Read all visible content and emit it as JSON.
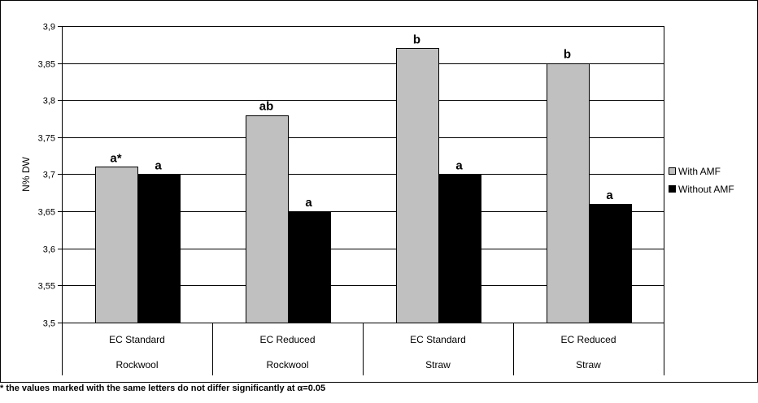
{
  "chart_data": {
    "type": "bar",
    "title": "",
    "xlabel": "",
    "ylabel": "N% DW",
    "ylim": [
      3.5,
      3.9
    ],
    "ytick_step": 0.05,
    "y_tick_labels": [
      "3,5",
      "3,55",
      "3,6",
      "3,65",
      "3,7",
      "3,75",
      "3,8",
      "3,85",
      "3,9"
    ],
    "grid": true,
    "legend_position": "right",
    "categories": [
      [
        "EC Standard",
        "Rockwool"
      ],
      [
        "EC Reduced",
        "Rockwool"
      ],
      [
        "EC Standard",
        "Straw"
      ],
      [
        "EC Reduced",
        "Straw"
      ]
    ],
    "series": [
      {
        "name": "With AMF",
        "color": "#c0c0c0",
        "values": [
          3.71,
          3.78,
          3.87,
          3.85
        ],
        "annotations": [
          "a*",
          "ab",
          "b",
          "b"
        ]
      },
      {
        "name": "Without AMF",
        "color": "#000000",
        "values": [
          3.7,
          3.65,
          3.7,
          3.66
        ],
        "annotations": [
          "a",
          "a",
          "a",
          "a"
        ]
      }
    ]
  },
  "footnote": "* the values marked with the same letters do not differ significantly at α=0.05"
}
